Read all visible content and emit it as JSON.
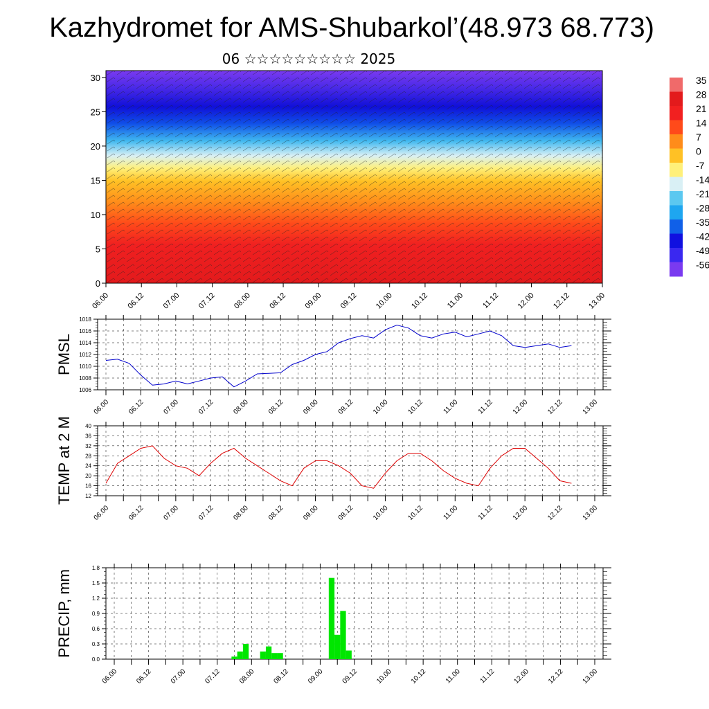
{
  "title": "Kazhydromet for AMS-Shubarkol’(48.973 68.773)",
  "subtitle": "06 ☆☆☆☆☆☆☆☆☆ 2025",
  "time_ticks": [
    "06.00",
    "06.12",
    "07.00",
    "07.12",
    "08.00",
    "08.12",
    "09.00",
    "09.12",
    "10.00",
    "10.12",
    "11.00",
    "11.12",
    "12.00",
    "12.12",
    "13.00"
  ],
  "chart_data": [
    {
      "type": "heatmap",
      "description_label": "",
      "yticks": [
        0,
        5,
        10,
        15,
        20,
        25,
        30
      ],
      "ylim": [
        0,
        31
      ],
      "colorbar_labels": [
        "35",
        "28",
        "21",
        "14",
        "7",
        "0",
        "-7",
        "-14",
        "-21",
        "-28",
        "-35",
        "-42",
        "-49",
        "-56"
      ],
      "colorbar_colors": [
        "#f06a6a",
        "#e31a1c",
        "#f22020",
        "#ff4a1a",
        "#ff8c1a",
        "#ffc125",
        "#fff07a",
        "#d9f0f5",
        "#5bc8f0",
        "#1ea6f0",
        "#1060e8",
        "#1010e0",
        "#3a28f0",
        "#7a3af0"
      ],
      "note_ranges": {
        "xlim": [
          0,
          84
        ]
      }
    },
    {
      "type": "line",
      "ylabel": "PMSL",
      "ylim": [
        1006,
        1018
      ],
      "yticks": [
        1006,
        1008,
        1010,
        1012,
        1014,
        1016,
        1018
      ],
      "color": "#0000cc",
      "x": [
        0,
        2,
        4,
        6,
        8,
        10,
        12,
        14,
        16,
        18,
        20,
        22,
        24,
        26,
        28,
        30,
        32,
        34,
        36,
        38,
        40,
        42,
        44,
        46,
        48,
        50,
        52,
        54,
        56,
        58,
        60,
        62,
        64,
        66,
        68,
        70,
        72,
        74,
        76,
        78,
        80
      ],
      "values": [
        1011.0,
        1011.2,
        1010.5,
        1008.5,
        1006.8,
        1007.0,
        1007.5,
        1007.0,
        1007.5,
        1008.0,
        1008.2,
        1006.5,
        1007.5,
        1008.7,
        1008.8,
        1008.9,
        1010.3,
        1011.0,
        1012.0,
        1012.5,
        1014.0,
        1014.7,
        1015.2,
        1014.8,
        1016.2,
        1017.0,
        1016.5,
        1015.2,
        1014.8,
        1015.5,
        1015.8,
        1015.0,
        1015.5,
        1016.0,
        1015.2,
        1013.5,
        1013.2,
        1013.5,
        1013.8,
        1013.2,
        1013.5
      ]
    },
    {
      "type": "line",
      "ylabel": "TEMP at 2 M",
      "ylim": [
        12,
        40
      ],
      "yticks": [
        12,
        16,
        20,
        24,
        28,
        32,
        36,
        40
      ],
      "color": "#dd0000",
      "x": [
        0,
        2,
        4,
        6,
        8,
        10,
        12,
        14,
        16,
        18,
        20,
        22,
        24,
        26,
        28,
        30,
        32,
        34,
        36,
        38,
        40,
        42,
        44,
        46,
        48,
        50,
        52,
        54,
        56,
        58,
        60,
        62,
        64,
        66,
        68,
        70,
        72,
        74,
        76,
        78,
        80
      ],
      "values": [
        17,
        25,
        28,
        31,
        32,
        27,
        24,
        23,
        20,
        25,
        29,
        31,
        27,
        24,
        21,
        18,
        16,
        23,
        26,
        26,
        24,
        21,
        16,
        15,
        21,
        26,
        29,
        29,
        26,
        22,
        19,
        17,
        16,
        23,
        28,
        31,
        31,
        27,
        23,
        18,
        17
      ]
    },
    {
      "type": "bar",
      "ylabel": "PRECIP, mm",
      "ylim": [
        0,
        1.8
      ],
      "yticks": [
        "0.0",
        "0.3",
        "0.6",
        "0.9",
        "1.2",
        "1.5",
        "1.8"
      ],
      "color": "#00e600",
      "x": [
        21,
        22,
        23,
        24,
        25,
        26,
        27,
        28,
        29,
        30,
        31,
        32,
        33,
        34,
        35,
        36,
        37,
        38,
        39,
        40,
        41,
        42,
        43,
        44,
        45
      ],
      "values": [
        0.05,
        0.15,
        0.3,
        0.0,
        0.0,
        0.15,
        0.25,
        0.12,
        0.12,
        0.0,
        0.0,
        0.0,
        0.0,
        0.0,
        0.0,
        0.0,
        0.0,
        1.6,
        0.48,
        0.95,
        0.17,
        0.0,
        0.0,
        0.0,
        0.0
      ]
    }
  ]
}
